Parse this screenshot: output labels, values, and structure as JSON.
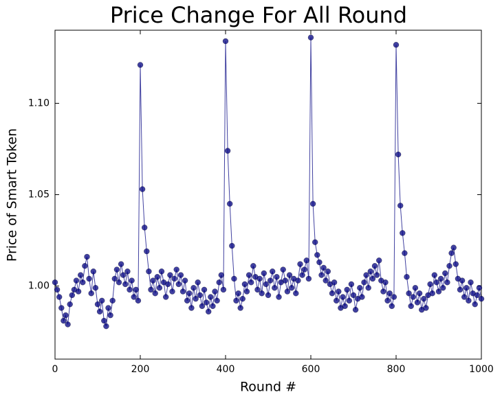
{
  "chart_data": {
    "type": "line",
    "title": "Price Change For All Round",
    "x_label": "Round #",
    "y_label": "Price of Smart Token",
    "xlim": [
      0,
      1000
    ],
    "xticks": [
      0,
      200,
      400,
      600,
      800,
      1000
    ],
    "ylim": [
      0.96,
      1.14
    ],
    "yticks": [
      {
        "value": 1.0,
        "label": "1.00"
      },
      {
        "value": 1.05,
        "label": "1.05"
      },
      {
        "value": 1.1,
        "label": "1.10"
      }
    ],
    "markers": true,
    "series": [
      {
        "color": "#000080",
        "x": [
          0,
          5,
          10,
          15,
          20,
          25,
          30,
          35,
          40,
          45,
          50,
          55,
          60,
          65,
          70,
          75,
          80,
          85,
          90,
          95,
          100,
          105,
          110,
          115,
          120,
          125,
          130,
          135,
          140,
          145,
          150,
          155,
          160,
          165,
          170,
          175,
          180,
          185,
          190,
          195,
          200,
          205,
          210,
          215,
          220,
          225,
          230,
          235,
          240,
          245,
          250,
          255,
          260,
          265,
          270,
          275,
          280,
          285,
          290,
          295,
          300,
          305,
          310,
          315,
          320,
          325,
          330,
          335,
          340,
          345,
          350,
          355,
          360,
          365,
          370,
          375,
          380,
          385,
          390,
          395,
          400,
          405,
          410,
          415,
          420,
          425,
          430,
          435,
          440,
          445,
          450,
          455,
          460,
          465,
          470,
          475,
          480,
          485,
          490,
          495,
          500,
          505,
          510,
          515,
          520,
          525,
          530,
          535,
          540,
          545,
          550,
          555,
          560,
          565,
          570,
          575,
          580,
          585,
          590,
          595,
          600,
          605,
          610,
          615,
          620,
          625,
          630,
          635,
          640,
          645,
          650,
          655,
          660,
          665,
          670,
          675,
          680,
          685,
          690,
          695,
          700,
          705,
          710,
          715,
          720,
          725,
          730,
          735,
          740,
          745,
          750,
          755,
          760,
          765,
          770,
          775,
          780,
          785,
          790,
          795,
          800,
          805,
          810,
          815,
          820,
          825,
          830,
          835,
          840,
          845,
          850,
          855,
          860,
          865,
          870,
          875,
          880,
          885,
          890,
          895,
          900,
          905,
          910,
          915,
          920,
          925,
          930,
          935,
          940,
          945,
          950,
          955,
          960,
          965,
          970,
          975,
          980,
          985,
          990,
          995,
          1000
        ],
        "values": [
          1.002,
          0.998,
          0.994,
          0.988,
          0.981,
          0.984,
          0.979,
          0.99,
          0.995,
          0.998,
          1.003,
          0.997,
          1.006,
          1.002,
          1.011,
          1.016,
          1.004,
          0.996,
          1.008,
          0.999,
          0.99,
          0.986,
          0.992,
          0.981,
          0.978,
          0.988,
          0.984,
          0.992,
          1.004,
          1.009,
          1.002,
          1.012,
          1.006,
          1.001,
          1.008,
          0.998,
          1.003,
          0.994,
          0.998,
          0.992,
          1.121,
          1.053,
          1.032,
          1.019,
          1.008,
          0.998,
          1.003,
          0.996,
          1.005,
          0.999,
          1.008,
          1.002,
          0.994,
          1.001,
          1.006,
          0.997,
          1.004,
          1.009,
          1.001,
          1.006,
          0.997,
          1.003,
          0.992,
          0.996,
          0.988,
          0.999,
          0.993,
          1.002,
          0.995,
          0.989,
          0.998,
          0.991,
          0.986,
          0.994,
          0.989,
          0.997,
          0.992,
          1.002,
          1.006,
          0.998,
          1.134,
          1.074,
          1.045,
          1.022,
          1.004,
          0.992,
          0.996,
          0.988,
          0.993,
          1.001,
          0.997,
          1.006,
          1.002,
          1.011,
          1.005,
          0.998,
          1.004,
          0.996,
          1.007,
          1.001,
          0.995,
          1.003,
          1.008,
          0.999,
          1.005,
          0.994,
          1.002,
          1.009,
          1.003,
          0.997,
          1.006,
          0.999,
          1.004,
          0.996,
          1.003,
          1.012,
          1.006,
          1.009,
          1.014,
          1.004,
          1.136,
          1.045,
          1.024,
          1.017,
          1.013,
          1.006,
          1.01,
          1.003,
          1.008,
          1.001,
          0.996,
          1.002,
          0.992,
          0.997,
          0.988,
          0.994,
          0.989,
          0.998,
          0.992,
          1.001,
          0.995,
          0.987,
          0.993,
          0.999,
          0.994,
          1.002,
          1.006,
          0.999,
          1.008,
          1.004,
          1.011,
          1.006,
          1.014,
          1.003,
          0.997,
          1.002,
          0.992,
          0.996,
          0.989,
          0.994,
          1.132,
          1.072,
          1.044,
          1.029,
          1.018,
          1.005,
          0.996,
          0.989,
          0.994,
          0.999,
          0.991,
          0.996,
          0.987,
          0.993,
          0.988,
          0.995,
          1.001,
          0.996,
          1.006,
          1.002,
          0.997,
          1.004,
          0.999,
          1.007,
          1.002,
          1.011,
          1.018,
          1.021,
          1.012,
          1.004,
          0.998,
          1.003,
          0.994,
          0.999,
          0.992,
          1.002,
          0.996,
          0.99,
          0.995,
          0.999,
          0.993
        ]
      }
    ]
  }
}
